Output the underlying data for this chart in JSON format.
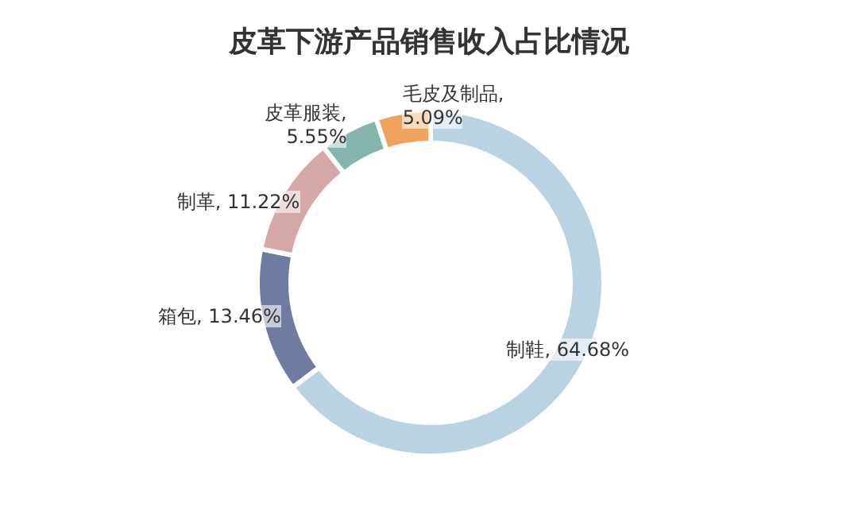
{
  "chart_data": {
    "type": "donut",
    "title": "皮革下游产品销售收入占比情况",
    "categories": [
      "制鞋",
      "箱包",
      "制革",
      "皮革服装",
      "毛皮及制品"
    ],
    "value_labels": [
      ", 64.68%",
      ", 13.46%",
      ", 11.22%",
      ", 5.55%",
      ", 5.09%"
    ],
    "values": [
      64.68,
      13.46,
      11.22,
      5.55,
      5.09
    ],
    "colors": [
      "#b9d3e2",
      "#6f7ba0",
      "#d5a8a8",
      "#86b5ad",
      "#f0a35e"
    ]
  }
}
